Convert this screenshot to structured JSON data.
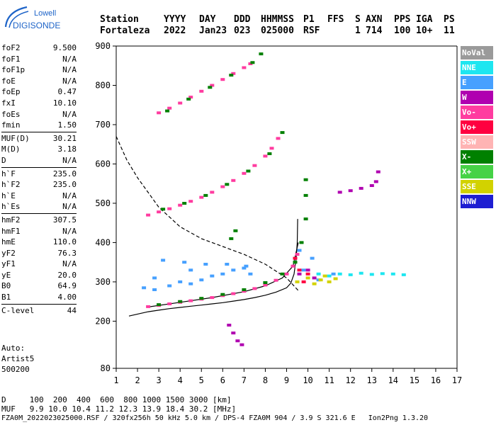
{
  "logo": {
    "line1": "Lowell",
    "line2": "DIGISONDE"
  },
  "header": {
    "labels": [
      "Station",
      "YYYY",
      "DAY",
      "DDD",
      "HHMMSS",
      "P1",
      "FFS",
      "S",
      "AXN",
      "PPS",
      "IGA",
      "PS"
    ],
    "values": [
      "Fortaleza",
      "2022",
      "Jan23",
      "023",
      "025000",
      "RSF",
      "",
      "1",
      "714",
      "100",
      "10+",
      "11"
    ]
  },
  "params": [
    {
      "name": "foF2",
      "value": "9.500"
    },
    {
      "name": "foF1",
      "value": "N/A"
    },
    {
      "name": "foF1p",
      "value": "N/A"
    },
    {
      "name": "foE",
      "value": "N/A"
    },
    {
      "name": "foEp",
      "value": "0.47"
    },
    {
      "name": "fxI",
      "value": "10.10"
    },
    {
      "name": "foEs",
      "value": "N/A"
    },
    {
      "name": "fmin",
      "value": "1.50"
    },
    {
      "name": "MUF(D)",
      "value": "30.21"
    },
    {
      "name": "M(D)",
      "value": "3.18"
    },
    {
      "name": "D",
      "value": "N/A"
    },
    {
      "name": "h`F",
      "value": "235.0"
    },
    {
      "name": "h`F2",
      "value": "235.0"
    },
    {
      "name": "h`E",
      "value": "N/A"
    },
    {
      "name": "h`Es",
      "value": "N/A"
    },
    {
      "name": "hmF2",
      "value": "307.5"
    },
    {
      "name": "hmF1",
      "value": "N/A"
    },
    {
      "name": "hmE",
      "value": "110.0"
    },
    {
      "name": "yF2",
      "value": "76.3"
    },
    {
      "name": "yF1",
      "value": "N/A"
    },
    {
      "name": "yE",
      "value": "20.0"
    },
    {
      "name": "B0",
      "value": "64.9"
    },
    {
      "name": "B1",
      "value": "4.00"
    },
    {
      "name": "C-level",
      "value": "44"
    }
  ],
  "auto": {
    "label": "Auto:",
    "name": "Artist5",
    "version": "500200"
  },
  "legend": [
    {
      "label": "NoVal",
      "color": "#9a9a9a"
    },
    {
      "label": "NNE",
      "color": "#1ee6f0"
    },
    {
      "label": "E",
      "color": "#46a0ff"
    },
    {
      "label": "W",
      "color": "#b000b0"
    },
    {
      "label": "Vo-",
      "color": "#ff3ca0"
    },
    {
      "label": "Vo+",
      "color": "#ff0040"
    },
    {
      "label": "SSW",
      "color": "#ffb4b4"
    },
    {
      "label": "X-",
      "color": "#008000"
    },
    {
      "label": "X+",
      "color": "#46d246"
    },
    {
      "label": "SSE",
      "color": "#d2d200"
    },
    {
      "label": "NNW",
      "color": "#1e1ed2"
    }
  ],
  "footer": {
    "d_label": "D",
    "d_values": "100  200  400  600  800 1000 1500 3000 [km]",
    "muf_label": "MUF",
    "muf_values": "9.9 10.0 10.4 11.2 12.3 13.9 18.4 30.2 [MHz]",
    "info": "FZA0M_2022023025000.RSF / 320fx256h 50 kHz 5.0 km / DPS-4 FZA0M 904 / 3.9 S 321.6 E   Ion2Png 1.3.20"
  },
  "chart_data": {
    "type": "scatter",
    "title": "",
    "xlabel": "",
    "ylabel": "",
    "xlim": [
      1,
      17
    ],
    "ylim": [
      80,
      900
    ],
    "xticks": [
      1,
      2,
      3,
      4,
      5,
      6,
      7,
      8,
      9,
      10,
      11,
      12,
      13,
      14,
      15,
      16,
      17
    ],
    "yticks": [
      80,
      200,
      300,
      400,
      500,
      600,
      700,
      800,
      900
    ],
    "grid": false,
    "legend_position": "right",
    "series": [
      {
        "name": "Vo-",
        "color": "#ff3ca0",
        "points": [
          [
            2.5,
            237
          ],
          [
            3,
            240
          ],
          [
            3.5,
            244
          ],
          [
            4,
            248
          ],
          [
            4.5,
            252
          ],
          [
            5,
            256
          ],
          [
            5.5,
            260
          ],
          [
            6,
            265
          ],
          [
            6.5,
            270
          ],
          [
            7,
            276
          ],
          [
            7.5,
            283
          ],
          [
            8,
            292
          ],
          [
            8.5,
            304
          ],
          [
            9,
            320
          ],
          [
            9.3,
            340
          ],
          [
            9.5,
            370
          ],
          [
            2.5,
            470
          ],
          [
            3,
            478
          ],
          [
            3.5,
            486
          ],
          [
            4,
            495
          ],
          [
            4.5,
            505
          ],
          [
            5,
            515
          ],
          [
            5.5,
            528
          ],
          [
            6,
            542
          ],
          [
            6.5,
            558
          ],
          [
            7,
            576
          ],
          [
            7.5,
            596
          ],
          [
            8,
            620
          ],
          [
            8.3,
            640
          ],
          [
            8.6,
            665
          ],
          [
            3,
            730
          ],
          [
            3.5,
            742
          ],
          [
            4,
            755
          ],
          [
            4.5,
            770
          ],
          [
            5,
            785
          ],
          [
            5.5,
            800
          ],
          [
            6,
            815
          ],
          [
            6.5,
            830
          ],
          [
            7,
            845
          ],
          [
            7.3,
            855
          ]
        ]
      },
      {
        "name": "X-",
        "color": "#008000",
        "points": [
          [
            3,
            242
          ],
          [
            4,
            250
          ],
          [
            5,
            258
          ],
          [
            6,
            268
          ],
          [
            7,
            280
          ],
          [
            8,
            298
          ],
          [
            8.8,
            320
          ],
          [
            9.4,
            350
          ],
          [
            9.7,
            400
          ],
          [
            3.2,
            485
          ],
          [
            4.2,
            500
          ],
          [
            5.2,
            520
          ],
          [
            6.2,
            548
          ],
          [
            7.2,
            582
          ],
          [
            8.2,
            626
          ],
          [
            8.8,
            680
          ],
          [
            3.4,
            735
          ],
          [
            4.4,
            765
          ],
          [
            5.4,
            795
          ],
          [
            6.4,
            826
          ],
          [
            7.4,
            858
          ],
          [
            7.8,
            880
          ],
          [
            6.4,
            410
          ],
          [
            6.6,
            430
          ],
          [
            9.9,
            460
          ],
          [
            9.9,
            520
          ],
          [
            9.9,
            560
          ]
        ]
      },
      {
        "name": "E",
        "color": "#46a0ff",
        "points": [
          [
            2.3,
            285
          ],
          [
            2.8,
            280
          ],
          [
            3.5,
            290
          ],
          [
            4,
            300
          ],
          [
            4.5,
            295
          ],
          [
            5,
            305
          ],
          [
            5.5,
            315
          ],
          [
            6,
            320
          ],
          [
            6.5,
            330
          ],
          [
            7,
            335
          ],
          [
            7.3,
            320
          ],
          [
            3.2,
            355
          ],
          [
            4.2,
            350
          ],
          [
            5.2,
            345
          ],
          [
            6.2,
            345
          ],
          [
            7.1,
            340
          ],
          [
            4.5,
            330
          ],
          [
            2.8,
            310
          ],
          [
            9.6,
            380
          ],
          [
            10.2,
            360
          ],
          [
            11.2,
            320
          ],
          [
            9.8,
            330
          ],
          [
            10.5,
            305
          ]
        ]
      },
      {
        "name": "NNE",
        "color": "#1ee6f0",
        "points": [
          [
            11.5,
            320
          ],
          [
            12,
            318
          ],
          [
            12.5,
            322
          ],
          [
            13,
            319
          ],
          [
            13.5,
            321
          ],
          [
            14,
            320
          ],
          [
            14.5,
            318
          ],
          [
            10.5,
            320
          ],
          [
            11,
            315
          ]
        ]
      },
      {
        "name": "W",
        "color": "#b000b0",
        "points": [
          [
            6.3,
            190
          ],
          [
            6.5,
            170
          ],
          [
            6.7,
            150
          ],
          [
            6.9,
            140
          ],
          [
            11.5,
            528
          ],
          [
            12,
            532
          ],
          [
            12.5,
            538
          ],
          [
            13,
            545
          ],
          [
            13.2,
            555
          ],
          [
            13.3,
            580
          ],
          [
            9.6,
            320
          ],
          [
            10,
            330
          ],
          [
            10.3,
            310
          ]
        ]
      },
      {
        "name": "SSE",
        "color": "#d2d200",
        "points": [
          [
            9.5,
            300
          ],
          [
            10,
            310
          ],
          [
            10.3,
            295
          ],
          [
            10.6,
            305
          ],
          [
            11,
            300
          ],
          [
            11.3,
            308
          ],
          [
            10.8,
            315
          ]
        ]
      },
      {
        "name": "Vo+",
        "color": "#ff0040",
        "points": [
          [
            9.4,
            360
          ],
          [
            9.6,
            330
          ],
          [
            9.8,
            300
          ],
          [
            10,
            320
          ]
        ]
      }
    ],
    "curves": [
      {
        "name": "profile",
        "style": "solid",
        "points": [
          [
            1.6,
            213
          ],
          [
            2,
            218
          ],
          [
            2.5,
            224
          ],
          [
            3,
            228
          ],
          [
            3.5,
            232
          ],
          [
            4,
            235
          ],
          [
            4.5,
            238
          ],
          [
            5,
            241
          ],
          [
            5.5,
            244
          ],
          [
            6,
            247
          ],
          [
            6.5,
            251
          ],
          [
            7,
            255
          ],
          [
            7.5,
            260
          ],
          [
            8,
            266
          ],
          [
            8.5,
            274
          ],
          [
            9,
            285
          ],
          [
            9.2,
            297
          ],
          [
            9.35,
            320
          ],
          [
            9.45,
            360
          ],
          [
            9.5,
            400
          ],
          [
            9.52,
            460
          ]
        ]
      },
      {
        "name": "MUF",
        "style": "dashed",
        "points": [
          [
            1,
            670
          ],
          [
            1.5,
            610
          ],
          [
            2,
            565
          ],
          [
            3,
            490
          ],
          [
            4,
            440
          ],
          [
            5,
            410
          ],
          [
            6,
            390
          ],
          [
            7,
            370
          ],
          [
            8,
            345
          ],
          [
            9,
            310
          ],
          [
            9.6,
            275
          ]
        ]
      },
      {
        "name": "fit",
        "style": "solid",
        "points": [
          [
            2.5,
            236
          ],
          [
            4,
            248
          ],
          [
            5.5,
            260
          ],
          [
            7,
            275
          ],
          [
            8,
            290
          ],
          [
            8.8,
            310
          ],
          [
            9.3,
            340
          ],
          [
            9.55,
            400
          ]
        ]
      }
    ]
  }
}
